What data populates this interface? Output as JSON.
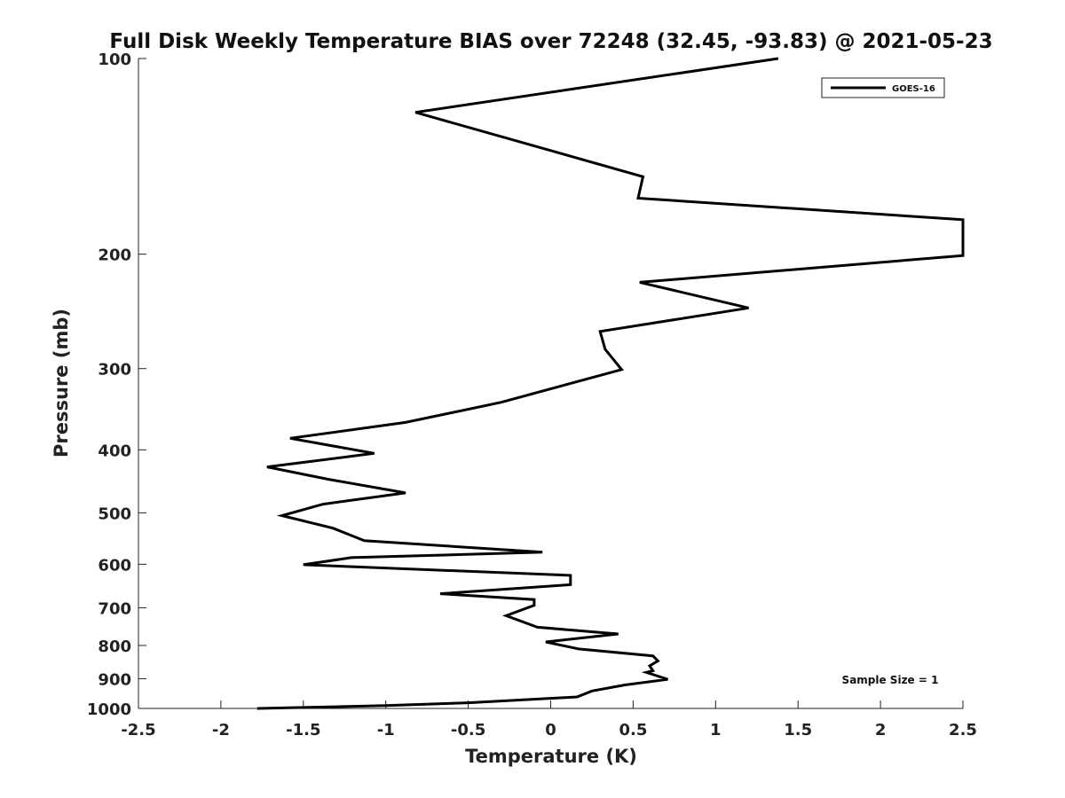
{
  "chart_data": {
    "type": "line",
    "title": "Full Disk Weekly Temperature BIAS over 72248 (32.45, -93.83) @ 2021-05-23",
    "xlabel": "Temperature (K)",
    "ylabel": "Pressure (mb)",
    "xlim": [
      -2.5,
      2.5
    ],
    "ylim": [
      100,
      1000
    ],
    "y_scale": "log",
    "y_reversed": true,
    "x_ticks": [
      -2.5,
      -2,
      -1.5,
      -1,
      -0.5,
      0,
      0.5,
      1,
      1.5,
      2,
      2.5
    ],
    "x_tick_labels": [
      "-2.5",
      "-2",
      "-1.5",
      "-1",
      "-0.5",
      "0",
      "0.5",
      "1",
      "1.5",
      "2",
      "2.5"
    ],
    "y_ticks": [
      100,
      200,
      300,
      400,
      500,
      600,
      700,
      800,
      900,
      1000
    ],
    "y_tick_labels": [
      "100",
      "200",
      "300",
      "400",
      "500",
      "600",
      "700",
      "800",
      "900",
      "1000"
    ],
    "grid": false,
    "legend_position": "top-right",
    "series": [
      {
        "name": "GOES-16",
        "color": "#000000",
        "points": [
          {
            "x": 1.38,
            "y": 100
          },
          {
            "x": -0.82,
            "y": 121
          },
          {
            "x": 0.56,
            "y": 152
          },
          {
            "x": 0.53,
            "y": 164
          },
          {
            "x": 2.5,
            "y": 177
          },
          {
            "x": 2.5,
            "y": 201
          },
          {
            "x": 0.54,
            "y": 221
          },
          {
            "x": 1.2,
            "y": 242
          },
          {
            "x": 0.3,
            "y": 263
          },
          {
            "x": 0.33,
            "y": 280
          },
          {
            "x": 0.43,
            "y": 301
          },
          {
            "x": -0.3,
            "y": 338
          },
          {
            "x": -0.88,
            "y": 363
          },
          {
            "x": -1.58,
            "y": 384
          },
          {
            "x": -1.07,
            "y": 405
          },
          {
            "x": -1.72,
            "y": 425
          },
          {
            "x": -1.35,
            "y": 444
          },
          {
            "x": -0.88,
            "y": 466
          },
          {
            "x": -1.38,
            "y": 485
          },
          {
            "x": -1.63,
            "y": 505
          },
          {
            "x": -1.32,
            "y": 528
          },
          {
            "x": -1.13,
            "y": 552
          },
          {
            "x": -0.05,
            "y": 575
          },
          {
            "x": -1.21,
            "y": 586
          },
          {
            "x": -1.5,
            "y": 601
          },
          {
            "x": 0.12,
            "y": 624
          },
          {
            "x": 0.12,
            "y": 645
          },
          {
            "x": -0.67,
            "y": 666
          },
          {
            "x": -0.1,
            "y": 680
          },
          {
            "x": -0.1,
            "y": 694
          },
          {
            "x": -0.27,
            "y": 720
          },
          {
            "x": -0.08,
            "y": 750
          },
          {
            "x": 0.41,
            "y": 768
          },
          {
            "x": -0.03,
            "y": 790
          },
          {
            "x": 0.17,
            "y": 810
          },
          {
            "x": 0.62,
            "y": 830
          },
          {
            "x": 0.65,
            "y": 845
          },
          {
            "x": 0.6,
            "y": 860
          },
          {
            "x": 0.62,
            "y": 875
          },
          {
            "x": 0.58,
            "y": 880
          },
          {
            "x": 0.71,
            "y": 902
          },
          {
            "x": 0.45,
            "y": 920
          },
          {
            "x": 0.25,
            "y": 940
          },
          {
            "x": 0.16,
            "y": 960
          },
          {
            "x": -0.5,
            "y": 980
          },
          {
            "x": -1.0,
            "y": 990
          },
          {
            "x": -1.78,
            "y": 1000
          }
        ]
      }
    ],
    "annotation": "Sample Size = 1"
  }
}
